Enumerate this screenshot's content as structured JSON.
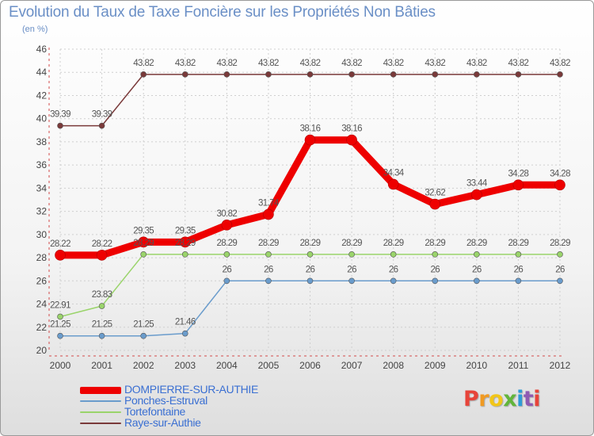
{
  "header": {
    "title": "Evolution du Taux de Taxe Foncière sur les Propriétés Non Bâties",
    "unit": "(en %)"
  },
  "logo": {
    "text": "Proxiti",
    "letters": [
      {
        "ch": "P",
        "color": "#e7443a"
      },
      {
        "ch": "r",
        "color": "#f09a22"
      },
      {
        "ch": "o",
        "color": "#f2c618"
      },
      {
        "ch": "x",
        "color": "#62b53b"
      },
      {
        "ch": "i",
        "color": "#2d9bd7"
      },
      {
        "ch": "t",
        "color": "#8f5bb3"
      },
      {
        "ch": "i",
        "color": "#e7443a"
      }
    ]
  },
  "chart_data": {
    "type": "line",
    "title": "Evolution du Taux de Taxe Foncière sur les Propriétés Non Bâties",
    "ylabel": "(en %)",
    "xlabel": "",
    "x": [
      "2000",
      "2001",
      "2002",
      "2003",
      "2004",
      "2005",
      "2006",
      "2007",
      "2008",
      "2009",
      "2010",
      "2011",
      "2012"
    ],
    "ylim": [
      20,
      46
    ],
    "yticks": [
      20,
      22,
      24,
      26,
      28,
      30,
      32,
      34,
      36,
      38,
      40,
      42,
      44,
      46
    ],
    "grid": true,
    "legend_position": "bottom-left",
    "series": [
      {
        "name": "DOMPIERRE-SUR-AUTHIE",
        "color": "#ee0000",
        "emphasis": true,
        "values": [
          28.22,
          28.22,
          29.35,
          29.35,
          30.82,
          31.74,
          38.16,
          38.16,
          34.34,
          32.62,
          33.44,
          34.28,
          34.28
        ]
      },
      {
        "name": "Ponches-Estruval",
        "color": "#6a9ccc",
        "emphasis": false,
        "values": [
          21.25,
          21.25,
          21.25,
          21.46,
          26,
          26,
          26,
          26,
          26,
          26,
          26,
          26,
          26
        ]
      },
      {
        "name": "Tortefontaine",
        "color": "#9ad46b",
        "emphasis": false,
        "values": [
          22.91,
          23.83,
          28.29,
          28.29,
          28.29,
          28.29,
          28.29,
          28.29,
          28.29,
          28.29,
          28.29,
          28.29,
          28.29
        ]
      },
      {
        "name": "Raye-sur-Authie",
        "color": "#7a3a3a",
        "emphasis": false,
        "values": [
          39.39,
          39.39,
          43.82,
          43.82,
          43.82,
          43.82,
          43.82,
          43.82,
          43.82,
          43.82,
          43.82,
          43.82,
          43.82
        ]
      }
    ]
  }
}
